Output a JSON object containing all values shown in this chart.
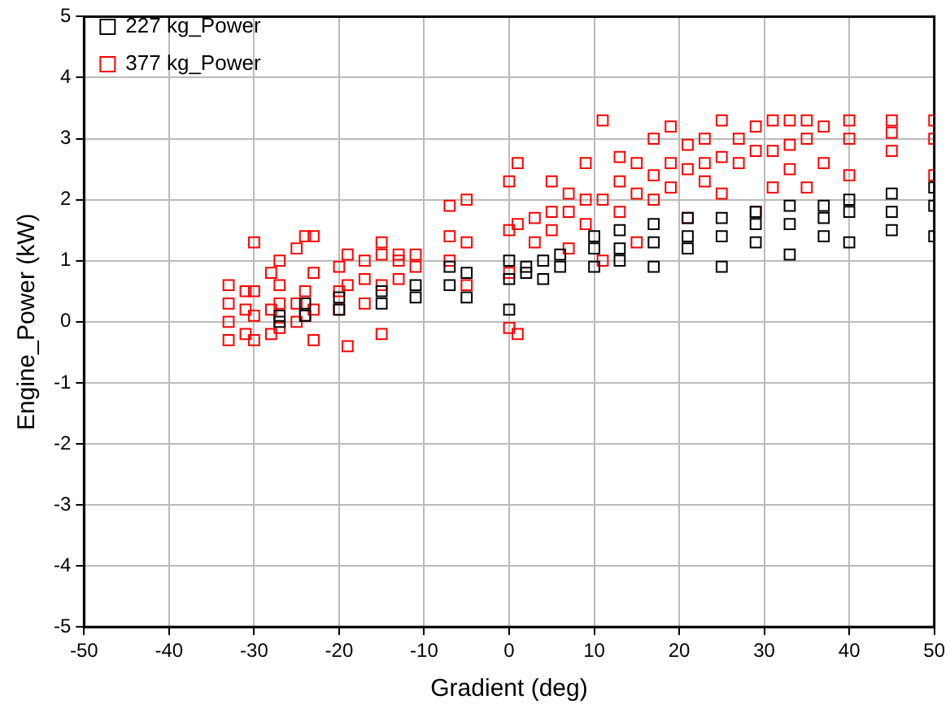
{
  "chart_data": {
    "type": "scatter",
    "xlabel": "Gradient (deg)",
    "ylabel": "Engine_Power (kW)",
    "xlim": [
      -50,
      50
    ],
    "xticks": [
      -50,
      -40,
      -30,
      -20,
      -10,
      0,
      10,
      20,
      30,
      40,
      50
    ],
    "ylim": [
      -5,
      5
    ],
    "yticks": [
      -5,
      -4,
      -3,
      -2,
      -1,
      0,
      1,
      2,
      3,
      4,
      5
    ],
    "grid": true,
    "legend": "top left",
    "marker": "square",
    "series": [
      {
        "name": "227 kg_Power",
        "color": "#000000",
        "x": [
          -27,
          -27,
          -24,
          -24,
          -20,
          -20,
          -15,
          -15,
          -11,
          -11,
          -7,
          -7,
          -5,
          -5,
          0,
          0,
          0,
          2,
          2,
          4,
          4,
          6,
          6,
          10,
          10,
          10,
          13,
          13,
          13,
          17,
          17,
          17,
          21,
          21,
          21,
          25,
          25,
          25,
          29,
          29,
          29,
          33,
          33,
          33,
          37,
          37,
          37,
          40,
          40,
          40,
          45,
          45,
          45,
          50,
          50,
          50
        ],
        "values": [
          0,
          0.1,
          0.1,
          0.3,
          0.2,
          0.4,
          0.3,
          0.5,
          0.4,
          0.6,
          0.6,
          0.9,
          0.4,
          0.8,
          0.7,
          1.0,
          0.2,
          0.8,
          0.9,
          0.7,
          1.0,
          0.9,
          1.1,
          0.9,
          1.2,
          1.4,
          1.0,
          1.2,
          1.5,
          0.9,
          1.3,
          1.6,
          1.2,
          1.4,
          1.7,
          0.9,
          1.4,
          1.7,
          1.3,
          1.6,
          1.8,
          1.1,
          1.6,
          1.9,
          1.4,
          1.7,
          1.9,
          1.3,
          1.8,
          2.0,
          1.5,
          1.8,
          2.1,
          1.4,
          1.9,
          2.2
        ]
      },
      {
        "name": "377 kg_Power",
        "color": "#ff0000",
        "x": [
          -33,
          -33,
          -33,
          -33,
          -31,
          -31,
          -31,
          -30,
          -30,
          -30,
          -30,
          -28,
          -28,
          -28,
          -27,
          -27,
          -27,
          -27,
          -25,
          -25,
          -25,
          -24,
          -24,
          -24,
          -23,
          -23,
          -23,
          -23,
          -20,
          -20,
          -20,
          -19,
          -19,
          -19,
          -17,
          -17,
          -17,
          -15,
          -15,
          -15,
          -15,
          -13,
          -13,
          -13,
          -11,
          -11,
          -7,
          -7,
          -7,
          -5,
          -5,
          -5,
          0,
          0,
          0,
          0,
          1,
          1,
          1,
          3,
          3,
          5,
          5,
          5,
          7,
          7,
          7,
          9,
          9,
          9,
          11,
          11,
          11,
          13,
          13,
          13,
          15,
          15,
          15,
          17,
          17,
          17,
          19,
          19,
          19,
          21,
          21,
          21,
          23,
          23,
          23,
          25,
          25,
          25,
          27,
          27,
          29,
          29,
          29,
          31,
          31,
          31,
          33,
          33,
          33,
          35,
          35,
          35,
          37,
          37,
          40,
          40,
          40,
          45,
          45,
          45,
          50,
          50,
          50
        ],
        "values": [
          -0.3,
          0,
          0.3,
          0.6,
          -0.2,
          0.2,
          0.5,
          -0.3,
          0.1,
          0.5,
          1.3,
          -0.2,
          0.2,
          0.8,
          -0.1,
          0.3,
          0.6,
          1.0,
          0,
          0.3,
          1.2,
          0.1,
          0.5,
          1.4,
          -0.3,
          0.2,
          0.8,
          1.4,
          0.2,
          0.5,
          0.9,
          -0.4,
          0.6,
          1.1,
          0.3,
          0.7,
          1.0,
          -0.2,
          0.6,
          1.1,
          1.3,
          0.7,
          1.0,
          1.1,
          0.9,
          1.1,
          1.0,
          1.4,
          1.9,
          0.6,
          1.3,
          2.0,
          -0.1,
          0.8,
          1.5,
          2.3,
          -0.2,
          1.6,
          2.6,
          1.3,
          1.7,
          1.5,
          1.8,
          2.3,
          1.2,
          1.8,
          2.1,
          1.6,
          2.0,
          2.6,
          1.0,
          2.0,
          3.3,
          1.8,
          2.3,
          2.7,
          1.3,
          2.1,
          2.6,
          2.0,
          2.4,
          3.0,
          2.2,
          2.6,
          3.2,
          1.7,
          2.5,
          2.9,
          2.3,
          2.6,
          3.0,
          2.1,
          2.7,
          3.3,
          2.6,
          3.0,
          1.8,
          2.8,
          3.2,
          2.2,
          2.8,
          3.3,
          2.5,
          2.9,
          3.3,
          2.2,
          3.0,
          3.3,
          2.6,
          3.2,
          2.4,
          3.0,
          3.3,
          2.8,
          3.1,
          3.3,
          2.4,
          3.0,
          3.3
        ]
      }
    ]
  }
}
